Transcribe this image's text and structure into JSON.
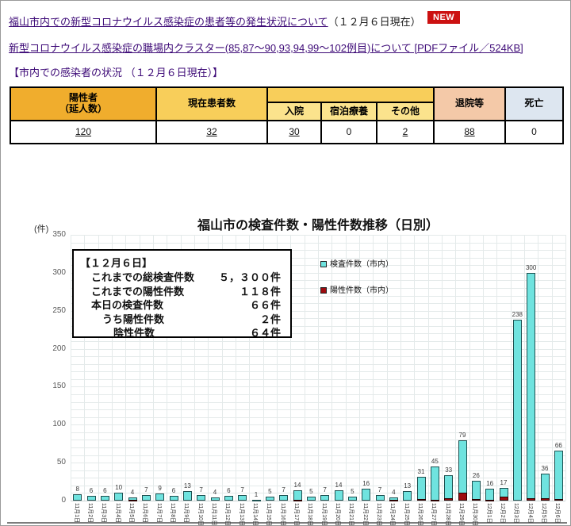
{
  "header": {
    "link1": "福山市内での新型コロナウイルス感染症の患者等の発生状況について",
    "link1_suffix": "（１２月６日現在）",
    "new_badge": "NEW",
    "link2": "新型コロナウイルス感染症の職場内クラスター(85,87～90,93,94,99～102例目)について [PDFファイル／524KB]",
    "section_heading": "【市内での感染者の状況 （１２月６日現在）】"
  },
  "status_table": {
    "col_positive": {
      "header": "陽性者\n（延人数）",
      "value": "120"
    },
    "col_current": {
      "header": "現在患者数",
      "value": "32"
    },
    "col_hospital": {
      "header": "入院",
      "value": "30"
    },
    "col_lodging": {
      "header": "宿泊療養",
      "value": "0"
    },
    "col_other": {
      "header": "その他",
      "value": "2"
    },
    "col_discharged": {
      "header": "退院等",
      "value": "88"
    },
    "col_dead": {
      "header": "死亡",
      "value": "0"
    }
  },
  "chart_data": {
    "type": "bar",
    "title": "福山市の検査件数・陽性件数推移（日別）",
    "y_unit_label": "(件)",
    "ylim": [
      0,
      350
    ],
    "y_major_tick": 50,
    "y_minor_grid": 10,
    "grid": true,
    "legend_position": "right-top",
    "categories": [
      "11月1日",
      "11月2日",
      "11月3日",
      "11月4日",
      "11月5日",
      "11月6日",
      "11月7日",
      "11月8日",
      "11月9日",
      "11月10日",
      "11月11日",
      "11月12日",
      "11月13日",
      "11月14日",
      "11月15日",
      "11月16日",
      "11月17日",
      "11月18日",
      "11月19日",
      "11月20日",
      "11月21日",
      "11月22日",
      "11月23日",
      "11月24日",
      "11月25日",
      "11月26日",
      "11月27日",
      "11月28日",
      "11月29日",
      "11月30日",
      "12月1日",
      "12月2日",
      "12月3日",
      "12月4日",
      "12月5日",
      "12月6日"
    ],
    "series": [
      {
        "name": "検査件数（市内）",
        "color": "#6fe3df",
        "values": [
          8,
          6,
          6,
          10,
          4,
          7,
          9,
          6,
          13,
          7,
          4,
          6,
          7,
          1,
          5,
          7,
          14,
          5,
          7,
          14,
          5,
          16,
          7,
          4,
          13,
          31,
          45,
          33,
          79,
          26,
          16,
          17,
          238,
          300,
          36,
          66
        ]
      },
      {
        "name": "陽性件数（市内）",
        "color": "#9e0b0f",
        "values": [
          0,
          0,
          0,
          0,
          1,
          0,
          0,
          0,
          0,
          0,
          0,
          0,
          0,
          0,
          0,
          0,
          1,
          0,
          0,
          0,
          0,
          0,
          0,
          1,
          0,
          2,
          1,
          3,
          10,
          2,
          1,
          5,
          0,
          3,
          3,
          2
        ]
      }
    ],
    "annotation": {
      "title": "【１２月６日】",
      "rows": [
        {
          "label": "これまでの総検査件数",
          "value": "５，３００件"
        },
        {
          "label": "これまでの陽性件数",
          "value": "１１８件"
        },
        {
          "label": "本日の検査件数",
          "value": "６６件"
        },
        {
          "label": "うち陽性件数",
          "value": "２件"
        },
        {
          "label": "陰性件数",
          "value": "６４件"
        }
      ]
    }
  }
}
